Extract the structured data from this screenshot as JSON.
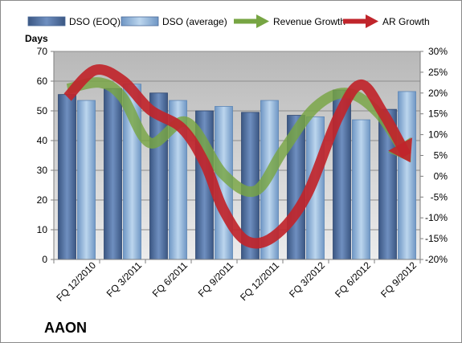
{
  "chart_data": {
    "type": "bar",
    "label": "AAON",
    "categories": [
      "FQ 12/2010",
      "FQ 3/2011",
      "FQ 6/2011",
      "FQ 9/2011",
      "FQ 12/2011",
      "FQ 3/2012",
      "FQ 6/2012",
      "FQ 9/2012"
    ],
    "bar_series": [
      {
        "name": "DSO (EOQ)",
        "values": [
          55.5,
          57.5,
          56,
          50,
          49.5,
          48.5,
          57,
          50.5
        ],
        "color": "#4f6fa0"
      },
      {
        "name": "DSO (average)",
        "values": [
          53.5,
          59,
          53.5,
          51.5,
          53.5,
          48,
          47,
          56.5
        ],
        "color": "#8eb2d8"
      }
    ],
    "line_series": [
      {
        "name": "Revenue Growth",
        "x": [
          -0.2,
          0.5,
          1.0,
          1.6,
          2.4,
          3.2,
          3.9,
          4.5,
          5.2,
          5.9,
          6.6,
          7.2
        ],
        "values": [
          21,
          22.5,
          19,
          8,
          13,
          0.5,
          -3.5,
          6,
          16.5,
          20,
          15,
          5
        ],
        "color": "#77a543"
      },
      {
        "name": "AR Growth",
        "x": [
          -0.2,
          0.4,
          1.0,
          1.6,
          2.3,
          2.8,
          3.2,
          3.7,
          4.3,
          5.0,
          5.7,
          6.2,
          6.7,
          7.2
        ],
        "values": [
          19,
          25.5,
          23,
          16,
          11.5,
          3,
          -8,
          -15.5,
          -14.5,
          -5,
          14,
          22,
          15,
          5
        ],
        "color": "#c0252b"
      }
    ],
    "y_left": {
      "title": "Days",
      "min": 0,
      "max": 70,
      "ticks": [
        "0",
        "10",
        "20",
        "30",
        "40",
        "50",
        "60",
        "70"
      ]
    },
    "y_right": {
      "min": -20,
      "max": 30,
      "ticks": [
        "-20%",
        "-15%",
        "-10%",
        "-5%",
        "0%",
        "5%",
        "10%",
        "15%",
        "20%",
        "25%",
        "30%"
      ]
    },
    "grid": true,
    "legend": "top"
  }
}
